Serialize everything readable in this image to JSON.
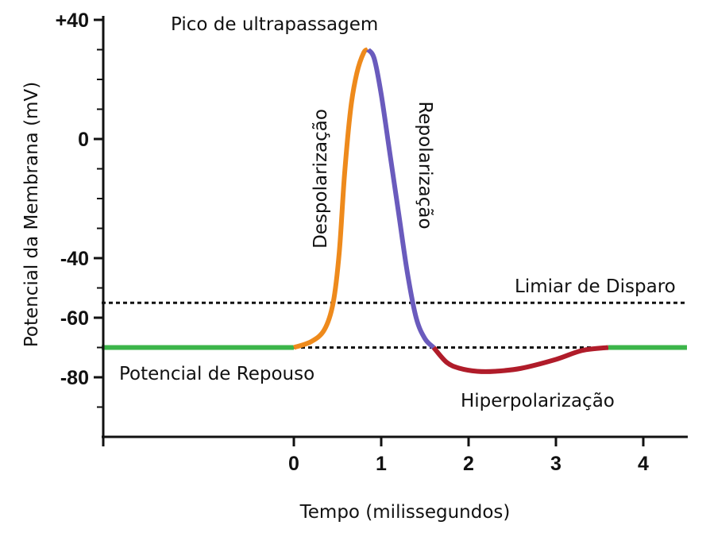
{
  "chart_data": {
    "type": "line",
    "title": "",
    "xlabel": "Tempo (milissegundos)",
    "ylabel": "Potencial da Membrana (mV)",
    "xlim": [
      -2.2,
      4.5
    ],
    "ylim": [
      -100,
      40
    ],
    "x_ticks": [
      {
        "value": 0,
        "label": "0"
      },
      {
        "value": 1,
        "label": "1"
      },
      {
        "value": 2,
        "label": "2"
      },
      {
        "value": 3,
        "label": "3"
      },
      {
        "value": 4,
        "label": "4"
      }
    ],
    "y_ticks": [
      {
        "value": 40,
        "label": "+40"
      },
      {
        "value": 0,
        "label": "0"
      },
      {
        "value": -40,
        "label": "-40"
      },
      {
        "value": -60,
        "label": "-60"
      },
      {
        "value": -80,
        "label": "-80"
      }
    ],
    "minor_y_ticks": [
      30,
      20,
      10,
      -10,
      -20,
      -30,
      -50,
      -70,
      -90
    ],
    "series": [
      {
        "name": "Potencial de Repouso",
        "color": "#3cb54a",
        "x": [
          -2.2,
          0.0
        ],
        "y": [
          -70,
          -70
        ]
      },
      {
        "name": "Despolarização",
        "color": "#ee8a1c",
        "x": [
          0.0,
          0.2,
          0.35,
          0.45,
          0.52,
          0.58,
          0.65,
          0.72,
          0.8,
          0.85
        ],
        "y": [
          -70,
          -68,
          -64,
          -55,
          -38,
          -12,
          10,
          22,
          29,
          30
        ]
      },
      {
        "name": "Repolarização",
        "color": "#6a5bbd",
        "x": [
          0.85,
          0.92,
          1.0,
          1.1,
          1.2,
          1.3,
          1.4,
          1.5,
          1.6
        ],
        "y": [
          30,
          27,
          15,
          -5,
          -25,
          -45,
          -60,
          -67,
          -70
        ]
      },
      {
        "name": "Hiperpolarização",
        "color": "#b01c2a",
        "x": [
          1.6,
          1.75,
          1.9,
          2.1,
          2.3,
          2.6,
          3.0,
          3.3,
          3.6
        ],
        "y": [
          -70,
          -75,
          -77,
          -78,
          -78,
          -77,
          -74,
          -71,
          -70
        ]
      },
      {
        "name": "Potencial de Repouso",
        "color": "#3cb54a",
        "x": [
          3.6,
          4.5
        ],
        "y": [
          -70,
          -70
        ]
      }
    ],
    "reference_lines": [
      {
        "label": "Limiar de Disparo",
        "y": -55,
        "x_start": -2.2,
        "x_end": 4.5,
        "style": "dotted"
      },
      {
        "label": "",
        "y": -70,
        "x_start": 0.0,
        "x_end": 3.6,
        "style": "dotted"
      }
    ],
    "annotations": [
      {
        "text": "Pico de ultrapassagem"
      },
      {
        "text": "Despolarização",
        "orientation": "vertical-up"
      },
      {
        "text": "Repolarização",
        "orientation": "vertical-down"
      },
      {
        "text": "Limiar de Disparo"
      },
      {
        "text": "Potencial de Repouso"
      },
      {
        "text": "Hiperpolarização"
      }
    ],
    "legend": "none",
    "grid": false
  }
}
